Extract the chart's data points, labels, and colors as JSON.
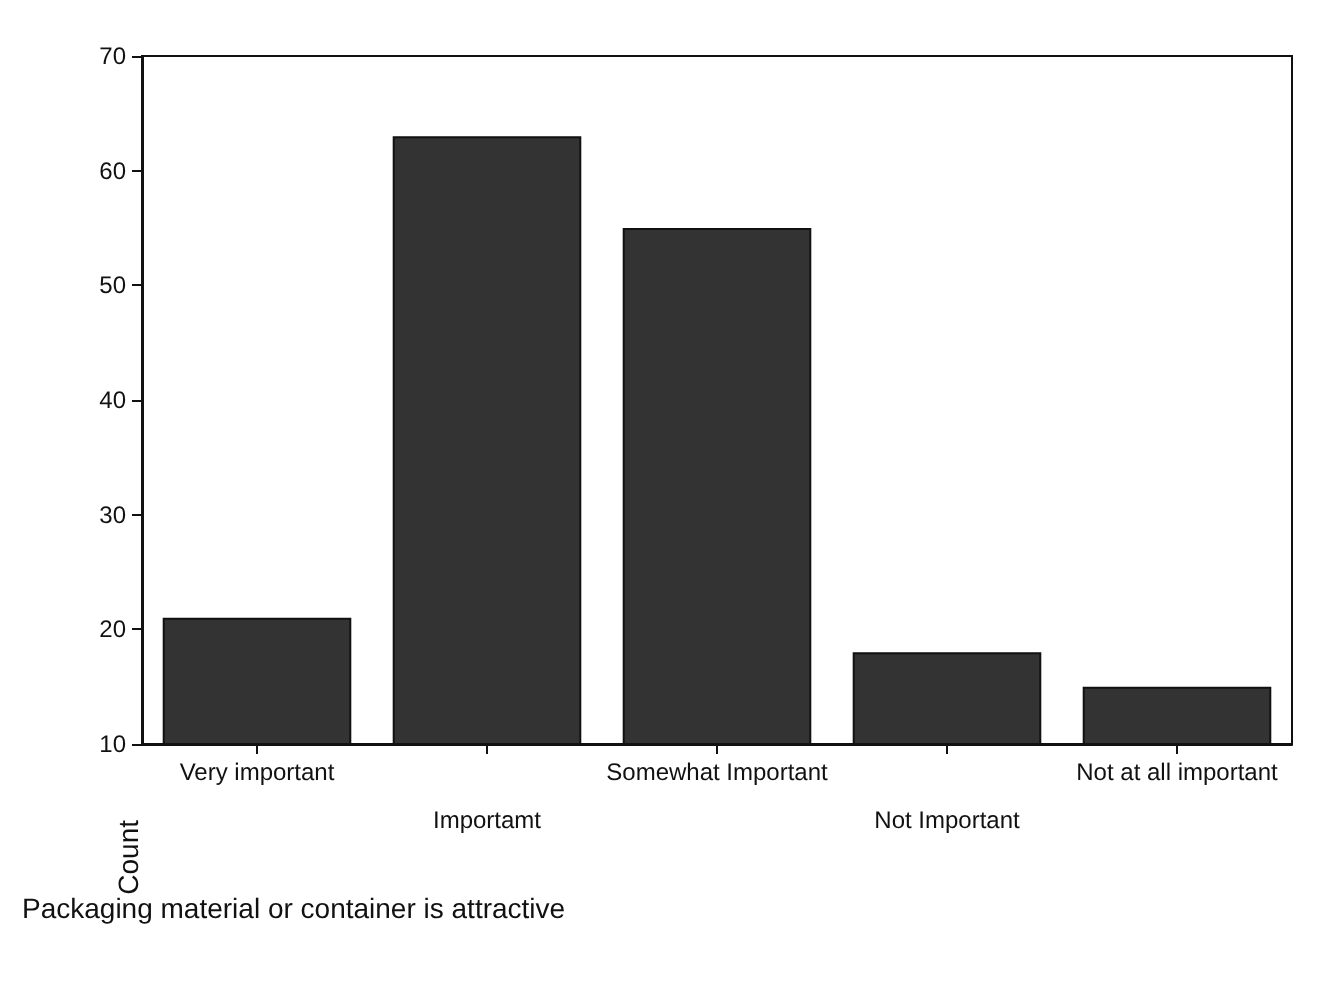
{
  "chart_data": {
    "type": "bar",
    "xlabel": "Packaging material or container is attractive",
    "ylabel": "Count",
    "categories": [
      "Very important",
      "Importamt",
      "Somewhat Important",
      "Not Important",
      "Not at all important"
    ],
    "values": [
      21,
      63,
      55,
      18,
      15
    ],
    "color": "#333333",
    "ylim": [
      10,
      70
    ],
    "yticks": [
      10,
      20,
      30,
      40,
      50,
      60,
      70
    ],
    "grid": false
  }
}
